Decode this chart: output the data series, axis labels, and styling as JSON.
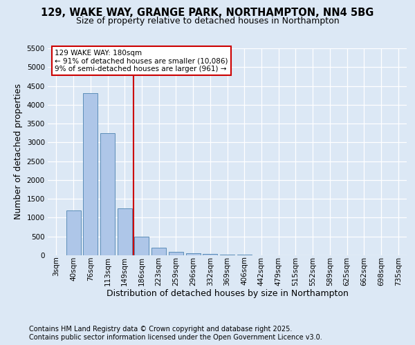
{
  "title_line1": "129, WAKE WAY, GRANGE PARK, NORTHAMPTON, NN4 5BG",
  "title_line2": "Size of property relative to detached houses in Northampton",
  "xlabel": "Distribution of detached houses by size in Northampton",
  "ylabel": "Number of detached properties",
  "categories": [
    "3sqm",
    "40sqm",
    "76sqm",
    "113sqm",
    "149sqm",
    "186sqm",
    "223sqm",
    "259sqm",
    "296sqm",
    "332sqm",
    "369sqm",
    "406sqm",
    "442sqm",
    "479sqm",
    "515sqm",
    "552sqm",
    "589sqm",
    "625sqm",
    "662sqm",
    "698sqm",
    "735sqm"
  ],
  "values": [
    0,
    1200,
    4300,
    3250,
    1250,
    500,
    200,
    90,
    55,
    30,
    20,
    10,
    8,
    4,
    2,
    1,
    1,
    0,
    0,
    0,
    0
  ],
  "bar_color": "#aec6e8",
  "bar_edge_color": "#5b8db8",
  "vline_x": 5.0,
  "vline_color": "#cc0000",
  "annotation_text": "129 WAKE WAY: 180sqm\n← 91% of detached houses are smaller (10,086)\n9% of semi-detached houses are larger (961) →",
  "ylim_max": 5500,
  "yticks": [
    0,
    500,
    1000,
    1500,
    2000,
    2500,
    3000,
    3500,
    4000,
    4500,
    5000,
    5500
  ],
  "footer_line1": "Contains HM Land Registry data © Crown copyright and database right 2025.",
  "footer_line2": "Contains public sector information licensed under the Open Government Licence v3.0.",
  "bg_color": "#dce8f5",
  "grid_color": "#ffffff",
  "ann_box_fc": "#ffffff",
  "ann_box_ec": "#cc0000"
}
